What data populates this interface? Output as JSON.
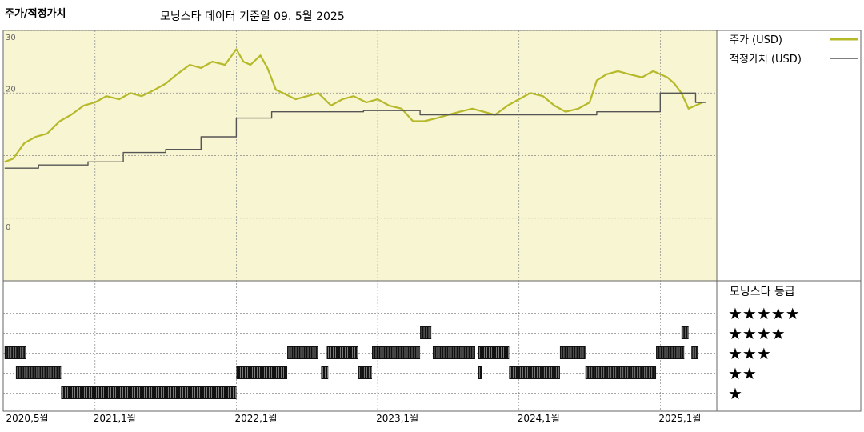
{
  "header": {
    "title": "주가/적정가치",
    "subtitle": "모닝스타 데이터 기준일 09. 5월 2025"
  },
  "legend": {
    "price_label": "주가 (USD)",
    "fair_label": "적정가치 (USD)"
  },
  "rating_panel": {
    "heading": "모닝스타 등급",
    "star_rows": [
      "★★★★★",
      "★★★★",
      "★★★",
      "★★",
      "★"
    ]
  },
  "colors": {
    "price": "#b5b92a",
    "fair": "#555555",
    "panel_bg": "#f8f5d2",
    "grid": "#888888"
  },
  "chart_data": {
    "type": "line",
    "x_unit": "months since 2020-05 is not shown; x values are fractional years",
    "xticks": [
      {
        "x": 2020.37,
        "label": "2020,5월"
      },
      {
        "x": 2021.0,
        "label": "2021,1월"
      },
      {
        "x": 2022.0,
        "label": "2022,1월"
      },
      {
        "x": 2023.0,
        "label": "2023,1월"
      },
      {
        "x": 2024.0,
        "label": "2024,1월"
      },
      {
        "x": 2025.0,
        "label": "2025,1월"
      }
    ],
    "yticks": [
      {
        "y": 30,
        "label": "30"
      },
      {
        "y": 20,
        "label": "20"
      },
      {
        "y": 0,
        "label": "0"
      }
    ],
    "xlim": [
      2020.35,
      2025.4
    ],
    "ylim": [
      -10,
      30
    ],
    "grid": true,
    "legend_position": "right",
    "series": [
      {
        "name": "주가 (USD)",
        "points": [
          [
            2020.36,
            9.0
          ],
          [
            2020.42,
            9.5
          ],
          [
            2020.5,
            12.0
          ],
          [
            2020.58,
            13.0
          ],
          [
            2020.66,
            13.5
          ],
          [
            2020.75,
            15.5
          ],
          [
            2020.83,
            16.5
          ],
          [
            2020.92,
            18.0
          ],
          [
            2021.0,
            18.5
          ],
          [
            2021.08,
            19.5
          ],
          [
            2021.17,
            19.0
          ],
          [
            2021.25,
            20.0
          ],
          [
            2021.33,
            19.5
          ],
          [
            2021.42,
            20.5
          ],
          [
            2021.5,
            21.5
          ],
          [
            2021.58,
            23.0
          ],
          [
            2021.67,
            24.5
          ],
          [
            2021.75,
            24.0
          ],
          [
            2021.83,
            25.0
          ],
          [
            2021.92,
            24.5
          ],
          [
            2022.0,
            27.0
          ],
          [
            2022.05,
            25.0
          ],
          [
            2022.1,
            24.5
          ],
          [
            2022.17,
            26.0
          ],
          [
            2022.22,
            24.0
          ],
          [
            2022.28,
            20.5
          ],
          [
            2022.33,
            20.0
          ],
          [
            2022.42,
            19.0
          ],
          [
            2022.5,
            19.5
          ],
          [
            2022.58,
            20.0
          ],
          [
            2022.67,
            18.0
          ],
          [
            2022.75,
            19.0
          ],
          [
            2022.83,
            19.5
          ],
          [
            2022.92,
            18.5
          ],
          [
            2023.0,
            19.0
          ],
          [
            2023.08,
            18.0
          ],
          [
            2023.17,
            17.5
          ],
          [
            2023.25,
            15.5
          ],
          [
            2023.33,
            15.5
          ],
          [
            2023.42,
            16.0
          ],
          [
            2023.5,
            16.5
          ],
          [
            2023.58,
            17.0
          ],
          [
            2023.67,
            17.5
          ],
          [
            2023.75,
            17.0
          ],
          [
            2023.83,
            16.5
          ],
          [
            2023.92,
            18.0
          ],
          [
            2024.0,
            19.0
          ],
          [
            2024.08,
            20.0
          ],
          [
            2024.17,
            19.5
          ],
          [
            2024.25,
            18.0
          ],
          [
            2024.33,
            17.0
          ],
          [
            2024.42,
            17.5
          ],
          [
            2024.5,
            18.5
          ],
          [
            2024.55,
            22.0
          ],
          [
            2024.62,
            23.0
          ],
          [
            2024.7,
            23.5
          ],
          [
            2024.78,
            23.0
          ],
          [
            2024.87,
            22.5
          ],
          [
            2024.95,
            23.5
          ],
          [
            2025.0,
            23.0
          ],
          [
            2025.05,
            22.5
          ],
          [
            2025.1,
            21.5
          ],
          [
            2025.15,
            20.0
          ],
          [
            2025.2,
            17.5
          ],
          [
            2025.25,
            18.0
          ],
          [
            2025.3,
            18.5
          ]
        ]
      },
      {
        "name": "적정가치 (USD)",
        "points": [
          [
            2020.36,
            8.0
          ],
          [
            2020.6,
            8.0
          ],
          [
            2020.6,
            8.5
          ],
          [
            2020.95,
            8.5
          ],
          [
            2020.95,
            9.0
          ],
          [
            2021.2,
            9.0
          ],
          [
            2021.2,
            10.5
          ],
          [
            2021.5,
            10.5
          ],
          [
            2021.5,
            11.0
          ],
          [
            2021.75,
            11.0
          ],
          [
            2021.75,
            13.0
          ],
          [
            2022.0,
            13.0
          ],
          [
            2022.0,
            16.0
          ],
          [
            2022.25,
            16.0
          ],
          [
            2022.25,
            17.0
          ],
          [
            2022.9,
            17.0
          ],
          [
            2022.9,
            17.2
          ],
          [
            2023.3,
            17.2
          ],
          [
            2023.3,
            16.5
          ],
          [
            2024.55,
            16.5
          ],
          [
            2024.55,
            17.0
          ],
          [
            2025.0,
            17.0
          ],
          [
            2025.0,
            20.0
          ],
          [
            2025.25,
            20.0
          ],
          [
            2025.25,
            18.5
          ],
          [
            2025.32,
            18.5
          ]
        ]
      }
    ],
    "rating_bands": [
      {
        "rating": 4,
        "segments": [
          [
            2023.3,
            2023.38
          ],
          [
            2025.15,
            2025.2
          ]
        ]
      },
      {
        "rating": 3,
        "segments": [
          [
            2020.36,
            2020.51
          ],
          [
            2022.36,
            2022.58
          ],
          [
            2022.64,
            2022.86
          ],
          [
            2022.96,
            2023.3
          ],
          [
            2023.39,
            2023.69
          ],
          [
            2023.71,
            2023.93
          ],
          [
            2024.29,
            2024.47
          ],
          [
            2024.97,
            2025.17
          ],
          [
            2025.22,
            2025.27
          ]
        ]
      },
      {
        "rating": 2,
        "segments": [
          [
            2020.44,
            2020.76
          ],
          [
            2022.0,
            2022.36
          ],
          [
            2022.6,
            2022.65
          ],
          [
            2022.86,
            2022.96
          ],
          [
            2023.71,
            2023.74
          ],
          [
            2023.93,
            2024.29
          ],
          [
            2024.47,
            2024.97
          ]
        ]
      },
      {
        "rating": 1,
        "segments": [
          [
            2020.76,
            2022.0
          ]
        ]
      }
    ]
  }
}
